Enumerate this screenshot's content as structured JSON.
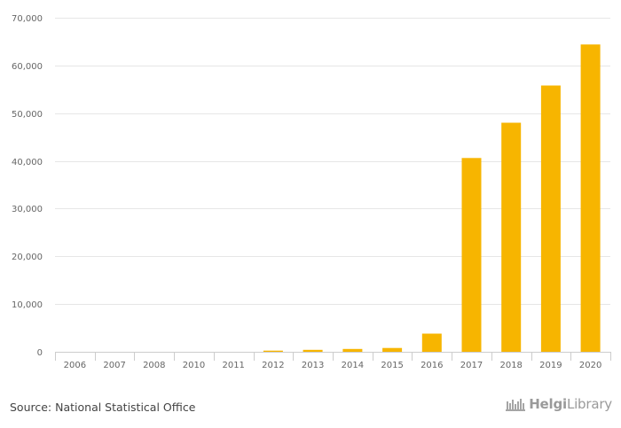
{
  "chart_data": {
    "type": "bar",
    "categories": [
      "2006",
      "2007",
      "2008",
      "2010",
      "2011",
      "2012",
      "2013",
      "2014",
      "2015",
      "2016",
      "2017",
      "2018",
      "2019",
      "2020"
    ],
    "values": [
      0,
      0,
      0,
      0,
      0,
      250,
      400,
      600,
      800,
      3800,
      40600,
      48000,
      55800,
      64400
    ],
    "ylim": [
      0,
      70000
    ],
    "yticks": [
      0,
      10000,
      20000,
      30000,
      40000,
      50000,
      60000,
      70000
    ],
    "ytick_labels": [
      "0",
      "10,000",
      "20,000",
      "30,000",
      "40,000",
      "50,000",
      "60,000",
      "70,000"
    ],
    "title": "",
    "xlabel": "",
    "ylabel": "",
    "bar_color": "#F7B500",
    "grid_color": "#E6E6E6"
  },
  "footer": {
    "source": "Source: National Statistical Office",
    "logo_bold": "Helgi",
    "logo_light": "Library"
  }
}
